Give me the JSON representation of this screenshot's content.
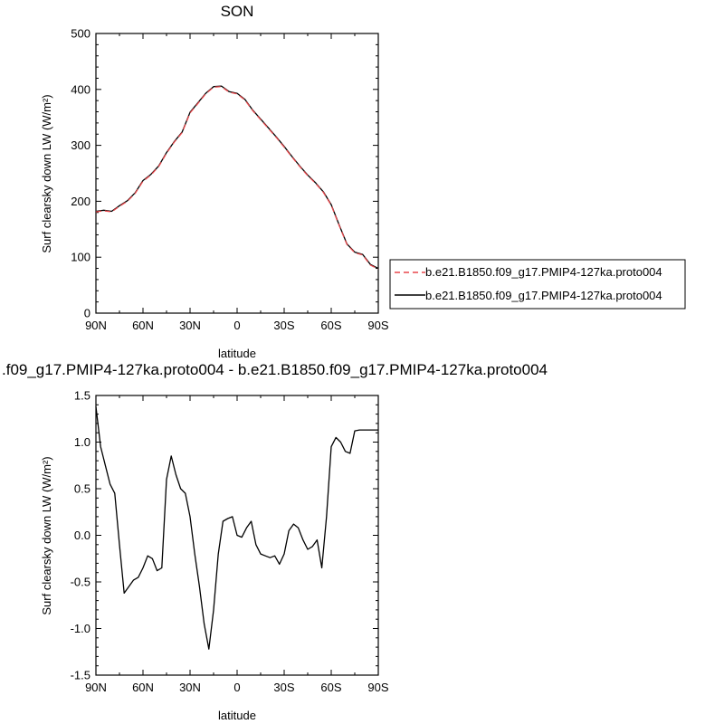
{
  "chart_data": [
    {
      "type": "line",
      "title": "SON",
      "xlabel": "latitude",
      "ylabel": "Surf clearsky down LW (W/m²)",
      "x_ticks": [
        "90N",
        "60N",
        "30N",
        "0",
        "30S",
        "60S",
        "90S"
      ],
      "xlim": [
        90,
        -90
      ],
      "y_ticks": [
        "0",
        "100",
        "200",
        "300",
        "400",
        "500"
      ],
      "ylim": [
        0,
        500
      ],
      "legend": {
        "placement": "right",
        "entries": [
          {
            "label": "b.e21.B1850.f09_g17.PMIP4-127ka.proto004",
            "color": "#e8474b",
            "dash": true
          },
          {
            "label": "b.e21.B1850.f09_g17.PMIP4-127ka.proto004",
            "color": "#000000",
            "dash": false
          }
        ]
      },
      "series": [
        {
          "name": "b.e21.B1850.f09_g17.PMIP4-127ka.proto004",
          "color": "#e8474b",
          "dash": true,
          "x": [
            90,
            85,
            80,
            75,
            70,
            65,
            60,
            55,
            50,
            45,
            40,
            35,
            30,
            25,
            20,
            15,
            10,
            5,
            0,
            -5,
            -10,
            -15,
            -20,
            -25,
            -30,
            -35,
            -40,
            -45,
            -50,
            -55,
            -60,
            -65,
            -70,
            -75,
            -80,
            -85,
            -90
          ],
          "values": [
            181,
            183,
            181,
            191,
            200,
            214,
            236,
            247,
            262,
            286,
            306,
            323,
            358,
            375,
            392,
            404,
            405,
            395,
            392,
            381,
            362,
            346,
            330,
            314,
            297,
            279,
            262,
            246,
            232,
            216,
            193,
            157,
            123,
            108,
            104,
            86,
            79
          ]
        },
        {
          "name": "b.e21.B1850.f09_g17.PMIP4-127ka.proto004",
          "color": "#000000",
          "dash": false,
          "x": [
            90,
            85,
            80,
            75,
            70,
            65,
            60,
            55,
            50,
            45,
            40,
            35,
            30,
            25,
            20,
            15,
            10,
            5,
            0,
            -5,
            -10,
            -15,
            -20,
            -25,
            -30,
            -35,
            -40,
            -45,
            -50,
            -55,
            -60,
            -65,
            -70,
            -75,
            -80,
            -85,
            -90
          ],
          "values": [
            182,
            184,
            182,
            192,
            201,
            215,
            237,
            248,
            263,
            287,
            307,
            324,
            359,
            376,
            393,
            405,
            406,
            396,
            393,
            382,
            363,
            347,
            331,
            315,
            298,
            280,
            263,
            247,
            233,
            217,
            194,
            158,
            124,
            109,
            105,
            87,
            80
          ]
        }
      ]
    },
    {
      "type": "line",
      "title": ".f09_g17.PMIP4-127ka.proto004 - b.e21.B1850.f09_g17.PMIP4-127ka.proto004",
      "xlabel": "latitude",
      "ylabel": "Surf clearsky down LW (W/m²)",
      "x_ticks": [
        "90N",
        "60N",
        "30N",
        "0",
        "30S",
        "60S",
        "90S"
      ],
      "xlim": [
        90,
        -90
      ],
      "y_ticks": [
        "1.5",
        "1.0",
        "0.5",
        "0.0",
        "-0.5",
        "-1.0",
        "-1.5"
      ],
      "ylim": [
        -1.5,
        1.5
      ],
      "series": [
        {
          "color": "#000000",
          "x": [
            90,
            87,
            84,
            81,
            78,
            75,
            72,
            69,
            66,
            63,
            60,
            57,
            54,
            51,
            48,
            45,
            42,
            39,
            36,
            33,
            30,
            27,
            24,
            21,
            18,
            15,
            12,
            9,
            6,
            3,
            0,
            -3,
            -6,
            -9,
            -12,
            -15,
            -18,
            -21,
            -24,
            -27,
            -30,
            -33,
            -36,
            -39,
            -42,
            -45,
            -48,
            -51,
            -54,
            -57,
            -60,
            -63,
            -66,
            -69,
            -72,
            -75,
            -78,
            -81,
            -84,
            -87,
            -90
          ],
          "values": [
            1.38,
            0.95,
            0.75,
            0.55,
            0.45,
            -0.1,
            -0.62,
            -0.55,
            -0.48,
            -0.45,
            -0.35,
            -0.22,
            -0.25,
            -0.38,
            -0.35,
            0.6,
            0.85,
            0.65,
            0.5,
            0.45,
            0.2,
            -0.2,
            -0.55,
            -0.95,
            -1.22,
            -0.8,
            -0.2,
            0.15,
            0.18,
            0.2,
            0.0,
            -0.02,
            0.08,
            0.15,
            -0.1,
            -0.2,
            -0.22,
            -0.24,
            -0.22,
            -0.31,
            -0.2,
            0.05,
            0.12,
            0.08,
            -0.05,
            -0.15,
            -0.12,
            -0.05,
            -0.35,
            0.2,
            0.95,
            1.05,
            1.0,
            0.9,
            0.88,
            1.12,
            1.13,
            1.13,
            1.13,
            1.13,
            1.13
          ]
        }
      ]
    }
  ]
}
